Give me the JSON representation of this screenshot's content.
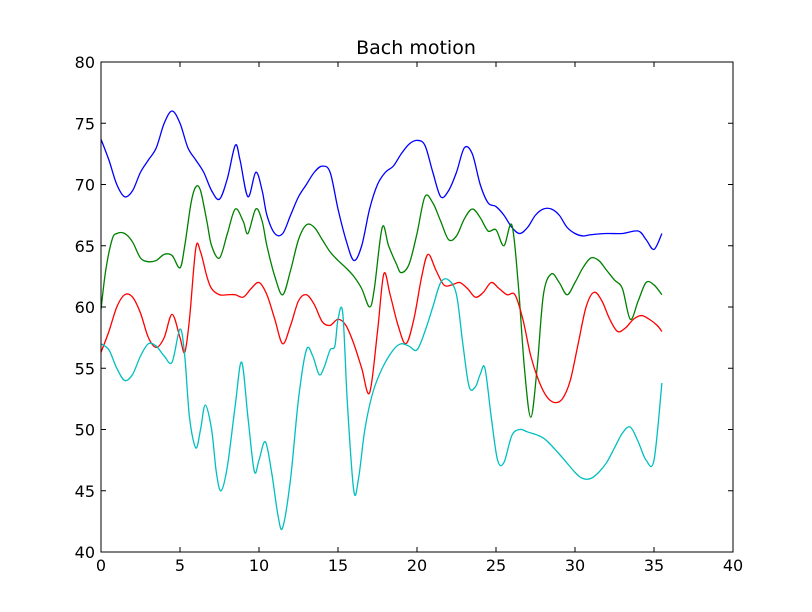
{
  "chart_data": {
    "type": "line",
    "title": "Bach motion",
    "xlabel": "",
    "ylabel": "",
    "xlim": [
      0,
      40
    ],
    "ylim": [
      40,
      80
    ],
    "xticks": [
      0,
      5,
      10,
      15,
      20,
      25,
      30,
      35,
      40
    ],
    "yticks": [
      40,
      45,
      50,
      55,
      60,
      65,
      70,
      75,
      80
    ],
    "grid": false,
    "legend": "none",
    "series": [
      {
        "color": "#0000ff",
        "points": [
          [
            0,
            73.7
          ],
          [
            0.5,
            72
          ],
          [
            1,
            70
          ],
          [
            1.5,
            69
          ],
          [
            2,
            69.5
          ],
          [
            2.5,
            71
          ],
          [
            3,
            72
          ],
          [
            3.5,
            73
          ],
          [
            4,
            75
          ],
          [
            4.5,
            76
          ],
          [
            5,
            75
          ],
          [
            5.5,
            73
          ],
          [
            6,
            72
          ],
          [
            6.5,
            71
          ],
          [
            7,
            69.5
          ],
          [
            7.5,
            68.8
          ],
          [
            8,
            70.5
          ],
          [
            8.5,
            73.2
          ],
          [
            8.8,
            72
          ],
          [
            9.3,
            69
          ],
          [
            9.8,
            71
          ],
          [
            10.2,
            69.5
          ],
          [
            10.5,
            67.5
          ],
          [
            11,
            66
          ],
          [
            11.5,
            66
          ],
          [
            12,
            67.5
          ],
          [
            12.5,
            69
          ],
          [
            13,
            70
          ],
          [
            13.5,
            71
          ],
          [
            14,
            71.5
          ],
          [
            14.5,
            71
          ],
          [
            15,
            68
          ],
          [
            15.5,
            65.5
          ],
          [
            16,
            63.8
          ],
          [
            16.5,
            65
          ],
          [
            17,
            68
          ],
          [
            17.5,
            70
          ],
          [
            18,
            71
          ],
          [
            18.5,
            71.5
          ],
          [
            19,
            72.5
          ],
          [
            19.5,
            73.3
          ],
          [
            20,
            73.6
          ],
          [
            20.5,
            73.2
          ],
          [
            21,
            71
          ],
          [
            21.5,
            69
          ],
          [
            22,
            69.5
          ],
          [
            22.5,
            71
          ],
          [
            23,
            73
          ],
          [
            23.5,
            72.5
          ],
          [
            24,
            70
          ],
          [
            24.5,
            68.5
          ],
          [
            25,
            68.2
          ],
          [
            25.5,
            67.5
          ],
          [
            26,
            66.5
          ],
          [
            26.5,
            66
          ],
          [
            27,
            66.5
          ],
          [
            27.5,
            67.5
          ],
          [
            28,
            68
          ],
          [
            28.5,
            68
          ],
          [
            29,
            67.5
          ],
          [
            29.5,
            66.5
          ],
          [
            30,
            66
          ],
          [
            30.5,
            65.8
          ],
          [
            31,
            65.9
          ],
          [
            32,
            66
          ],
          [
            33,
            66
          ],
          [
            34,
            66.2
          ],
          [
            34.5,
            65.5
          ],
          [
            35,
            64.7
          ],
          [
            35.5,
            66
          ]
        ]
      },
      {
        "color": "#008000",
        "points": [
          [
            0,
            59.8
          ],
          [
            0.3,
            63
          ],
          [
            0.7,
            65.5
          ],
          [
            1,
            66
          ],
          [
            1.5,
            66
          ],
          [
            2,
            65.3
          ],
          [
            2.5,
            64
          ],
          [
            3,
            63.7
          ],
          [
            3.5,
            63.8
          ],
          [
            4,
            64.3
          ],
          [
            4.5,
            64.2
          ],
          [
            5,
            63.2
          ],
          [
            5.3,
            65
          ],
          [
            5.7,
            68.5
          ],
          [
            6,
            69.8
          ],
          [
            6.3,
            69.5
          ],
          [
            6.7,
            67
          ],
          [
            7,
            65
          ],
          [
            7.5,
            64
          ],
          [
            8,
            66
          ],
          [
            8.5,
            68
          ],
          [
            9,
            67
          ],
          [
            9.3,
            66
          ],
          [
            9.8,
            68
          ],
          [
            10.2,
            67
          ],
          [
            10.5,
            65
          ],
          [
            11,
            62.5
          ],
          [
            11.5,
            61
          ],
          [
            12,
            63
          ],
          [
            12.5,
            65.5
          ],
          [
            13,
            66.7
          ],
          [
            13.5,
            66.5
          ],
          [
            14,
            65.5
          ],
          [
            14.5,
            64.5
          ],
          [
            15,
            63.8
          ],
          [
            15.5,
            63.2
          ],
          [
            16,
            62.5
          ],
          [
            16.5,
            61.5
          ],
          [
            17,
            60
          ],
          [
            17.3,
            61.5
          ],
          [
            17.8,
            66.5
          ],
          [
            18.2,
            65
          ],
          [
            18.7,
            63.5
          ],
          [
            19,
            62.8
          ],
          [
            19.5,
            63.5
          ],
          [
            20,
            66
          ],
          [
            20.5,
            69
          ],
          [
            21,
            68.5
          ],
          [
            21.5,
            67
          ],
          [
            22,
            65.5
          ],
          [
            22.5,
            65.8
          ],
          [
            23,
            67.2
          ],
          [
            23.5,
            68
          ],
          [
            24,
            67.3
          ],
          [
            24.5,
            66.2
          ],
          [
            25,
            66.3
          ],
          [
            25.5,
            65
          ],
          [
            26,
            66.7
          ],
          [
            26.4,
            62
          ],
          [
            26.8,
            55
          ],
          [
            27.2,
            51
          ],
          [
            27.6,
            55
          ],
          [
            28,
            61
          ],
          [
            28.5,
            62.7
          ],
          [
            29,
            62
          ],
          [
            29.5,
            61
          ],
          [
            30,
            62
          ],
          [
            30.5,
            63.2
          ],
          [
            31,
            64
          ],
          [
            31.5,
            63.8
          ],
          [
            32,
            63
          ],
          [
            32.5,
            62.2
          ],
          [
            33,
            61.5
          ],
          [
            33.5,
            59
          ],
          [
            34,
            60.5
          ],
          [
            34.5,
            62
          ],
          [
            35,
            61.8
          ],
          [
            35.5,
            61
          ]
        ]
      },
      {
        "color": "#ff0000",
        "points": [
          [
            0,
            56.3
          ],
          [
            0.5,
            58
          ],
          [
            1,
            60
          ],
          [
            1.5,
            61
          ],
          [
            2,
            60.8
          ],
          [
            2.5,
            59.5
          ],
          [
            3,
            57.5
          ],
          [
            3.5,
            56.7
          ],
          [
            4,
            57.5
          ],
          [
            4.5,
            59.4
          ],
          [
            5,
            57.5
          ],
          [
            5.3,
            56.3
          ],
          [
            5.6,
            59
          ],
          [
            6,
            64.8
          ],
          [
            6.3,
            64.5
          ],
          [
            6.7,
            62.5
          ],
          [
            7,
            61.5
          ],
          [
            7.5,
            61
          ],
          [
            8,
            61
          ],
          [
            8.5,
            61
          ],
          [
            9,
            60.8
          ],
          [
            9.5,
            61.5
          ],
          [
            10,
            62
          ],
          [
            10.5,
            61
          ],
          [
            11,
            59
          ],
          [
            11.5,
            57
          ],
          [
            12,
            58.5
          ],
          [
            12.5,
            60.5
          ],
          [
            13,
            61
          ],
          [
            13.5,
            60.2
          ],
          [
            14,
            58.8
          ],
          [
            14.5,
            58.5
          ],
          [
            15,
            59
          ],
          [
            15.5,
            58.5
          ],
          [
            16,
            57
          ],
          [
            16.5,
            55
          ],
          [
            17,
            53
          ],
          [
            17.5,
            58
          ],
          [
            17.9,
            62.7
          ],
          [
            18.3,
            61
          ],
          [
            18.8,
            58.5
          ],
          [
            19.3,
            57
          ],
          [
            19.8,
            59
          ],
          [
            20.3,
            62.5
          ],
          [
            20.7,
            64.3
          ],
          [
            21.2,
            63
          ],
          [
            21.7,
            61.8
          ],
          [
            22.2,
            61.8
          ],
          [
            22.7,
            62
          ],
          [
            23.2,
            61.5
          ],
          [
            23.7,
            60.8
          ],
          [
            24.2,
            61.2
          ],
          [
            24.7,
            62
          ],
          [
            25.2,
            61.5
          ],
          [
            25.7,
            61
          ],
          [
            26.2,
            61
          ],
          [
            26.7,
            59
          ],
          [
            27.2,
            56
          ],
          [
            27.7,
            54
          ],
          [
            28.2,
            52.7
          ],
          [
            28.7,
            52.2
          ],
          [
            29.2,
            52.5
          ],
          [
            29.7,
            54
          ],
          [
            30.2,
            57
          ],
          [
            30.7,
            60
          ],
          [
            31.2,
            61.2
          ],
          [
            31.7,
            60.5
          ],
          [
            32.2,
            59
          ],
          [
            32.7,
            58
          ],
          [
            33.2,
            58.3
          ],
          [
            33.7,
            59
          ],
          [
            34.2,
            59.3
          ],
          [
            34.7,
            59
          ],
          [
            35.2,
            58.5
          ],
          [
            35.5,
            58
          ]
        ]
      },
      {
        "color": "#00bfbf",
        "points": [
          [
            0,
            57
          ],
          [
            0.5,
            56.5
          ],
          [
            1,
            55
          ],
          [
            1.5,
            54
          ],
          [
            2,
            54.5
          ],
          [
            2.5,
            56
          ],
          [
            3,
            57
          ],
          [
            3.5,
            56.8
          ],
          [
            4,
            56
          ],
          [
            4.5,
            55.5
          ],
          [
            5,
            58.2
          ],
          [
            5.3,
            56
          ],
          [
            5.6,
            51
          ],
          [
            6,
            48.5
          ],
          [
            6.3,
            50
          ],
          [
            6.6,
            52
          ],
          [
            7,
            50
          ],
          [
            7.3,
            46.5
          ],
          [
            7.6,
            45
          ],
          [
            8,
            47
          ],
          [
            8.5,
            52
          ],
          [
            8.9,
            55.5
          ],
          [
            9.3,
            51
          ],
          [
            9.7,
            46.6
          ],
          [
            10,
            47.5
          ],
          [
            10.4,
            49
          ],
          [
            10.8,
            46.5
          ],
          [
            11.2,
            43
          ],
          [
            11.5,
            42
          ],
          [
            12,
            46
          ],
          [
            12.5,
            52.5
          ],
          [
            13,
            56.5
          ],
          [
            13.4,
            56
          ],
          [
            13.8,
            54.5
          ],
          [
            14.1,
            55
          ],
          [
            14.5,
            56.5
          ],
          [
            14.8,
            56.8
          ],
          [
            15,
            59
          ],
          [
            15.3,
            59.5
          ],
          [
            15.6,
            52
          ],
          [
            16,
            45
          ],
          [
            16.3,
            46
          ],
          [
            16.7,
            50
          ],
          [
            17.2,
            53
          ],
          [
            17.8,
            55
          ],
          [
            18.5,
            56.5
          ],
          [
            19,
            57
          ],
          [
            19.5,
            56.8
          ],
          [
            20,
            56.5
          ],
          [
            20.5,
            58
          ],
          [
            21,
            60
          ],
          [
            21.5,
            62
          ],
          [
            22,
            62.2
          ],
          [
            22.5,
            61
          ],
          [
            22.9,
            57
          ],
          [
            23.3,
            53.5
          ],
          [
            23.7,
            53.5
          ],
          [
            24,
            54.5
          ],
          [
            24.3,
            55
          ],
          [
            24.7,
            51
          ],
          [
            25.1,
            47.5
          ],
          [
            25.5,
            47.3
          ],
          [
            26,
            49.5
          ],
          [
            26.5,
            50
          ],
          [
            27,
            49.8
          ],
          [
            28,
            49.3
          ],
          [
            29,
            48
          ],
          [
            30,
            46.5
          ],
          [
            30.5,
            46
          ],
          [
            31,
            46
          ],
          [
            31.5,
            46.5
          ],
          [
            32,
            47.3
          ],
          [
            32.5,
            48.5
          ],
          [
            33,
            49.7
          ],
          [
            33.5,
            50.2
          ],
          [
            34,
            49
          ],
          [
            34.5,
            47.5
          ],
          [
            35,
            47.5
          ],
          [
            35.5,
            53.8
          ]
        ]
      }
    ]
  }
}
